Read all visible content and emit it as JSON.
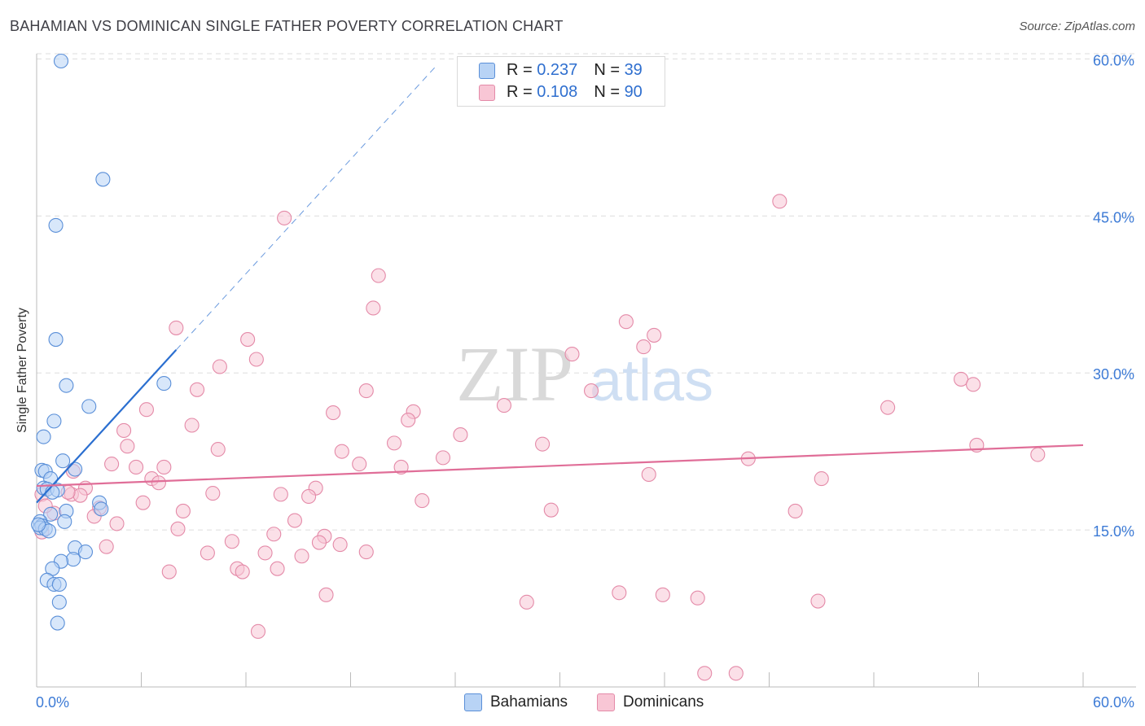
{
  "title": "BAHAMIAN VS DOMINICAN SINGLE FATHER POVERTY CORRELATION CHART",
  "source": "Source: ZipAtlas.com",
  "watermark": {
    "zip": "ZIP",
    "atlas": "atlas"
  },
  "colors": {
    "bahamians_fill": "#b8d3f5",
    "bahamians_stroke": "#5a8fd8",
    "bahamians_line": "#2b6fd0",
    "dominicans_fill": "#f8c6d5",
    "dominicans_stroke": "#e48aa8",
    "dominicans_line": "#e06e98",
    "axis_text": "#3d7bd6",
    "grid": "#dddddd"
  },
  "legend": {
    "rows": [
      {
        "r_label": "R =",
        "r_value": "0.237",
        "n_label": "N =",
        "n_value": "39"
      },
      {
        "r_label": "R =",
        "r_value": "0.108",
        "n_label": "N =",
        "n_value": "90"
      }
    ]
  },
  "bottom_legend": {
    "bahamians": "Bahamians",
    "dominicans": "Dominicans"
  },
  "chart_data": {
    "type": "scatter",
    "title": "BAHAMIAN VS DOMINICAN SINGLE FATHER POVERTY CORRELATION CHART",
    "xlabel": "",
    "ylabel": "Single Father Poverty",
    "xlim": [
      0,
      60
    ],
    "ylim": [
      0,
      60.5
    ],
    "x_tick_labels": [
      "0.0%",
      "60.0%"
    ],
    "y_ticks": [
      15,
      30,
      45,
      60
    ],
    "y_tick_labels": [
      "15.0%",
      "30.0%",
      "45.0%",
      "60.0%"
    ],
    "series": [
      {
        "name": "Bahamians",
        "r": 0.237,
        "n": 39,
        "trend": {
          "x0": 0.0,
          "y0": 17.6,
          "x1": 8.0,
          "y1": 32.2,
          "dash_to_x": 23.0,
          "dash_to_y": 59.5
        },
        "points": [
          [
            1.4,
            59.8
          ],
          [
            3.8,
            48.5
          ],
          [
            1.1,
            44.1
          ],
          [
            1.1,
            33.2
          ],
          [
            1.7,
            28.8
          ],
          [
            7.3,
            29.0
          ],
          [
            3.0,
            26.8
          ],
          [
            1.0,
            25.4
          ],
          [
            0.4,
            23.9
          ],
          [
            1.5,
            21.6
          ],
          [
            0.3,
            20.7
          ],
          [
            0.5,
            20.6
          ],
          [
            2.2,
            20.8
          ],
          [
            0.8,
            19.9
          ],
          [
            0.4,
            19.0
          ],
          [
            0.6,
            18.9
          ],
          [
            1.2,
            18.8
          ],
          [
            0.9,
            18.6
          ],
          [
            1.7,
            16.8
          ],
          [
            3.6,
            17.6
          ],
          [
            3.7,
            17.0
          ],
          [
            0.8,
            16.5
          ],
          [
            0.2,
            15.8
          ],
          [
            0.3,
            15.4
          ],
          [
            0.2,
            15.2
          ],
          [
            0.5,
            15.1
          ],
          [
            0.7,
            14.9
          ],
          [
            1.6,
            15.8
          ],
          [
            2.2,
            13.3
          ],
          [
            2.8,
            12.9
          ],
          [
            2.1,
            12.2
          ],
          [
            1.4,
            12.0
          ],
          [
            0.9,
            11.3
          ],
          [
            0.6,
            10.2
          ],
          [
            1.0,
            9.8
          ],
          [
            1.3,
            9.8
          ],
          [
            1.3,
            8.1
          ],
          [
            1.2,
            6.1
          ],
          [
            0.1,
            15.5
          ]
        ]
      },
      {
        "name": "Dominicans",
        "r": 0.108,
        "n": 90,
        "trend": {
          "x0": 0.0,
          "y0": 19.2,
          "x1": 60.0,
          "y1": 23.1
        },
        "points": [
          [
            14.2,
            44.8
          ],
          [
            42.6,
            46.4
          ],
          [
            19.6,
            39.3
          ],
          [
            19.3,
            36.2
          ],
          [
            8.0,
            34.3
          ],
          [
            12.1,
            33.2
          ],
          [
            33.8,
            34.9
          ],
          [
            35.4,
            33.6
          ],
          [
            34.8,
            32.5
          ],
          [
            12.6,
            31.3
          ],
          [
            30.7,
            31.8
          ],
          [
            10.5,
            30.6
          ],
          [
            18.9,
            28.3
          ],
          [
            9.2,
            28.4
          ],
          [
            31.8,
            28.3
          ],
          [
            53.0,
            29.4
          ],
          [
            53.7,
            28.9
          ],
          [
            26.8,
            26.9
          ],
          [
            48.8,
            26.7
          ],
          [
            6.3,
            26.5
          ],
          [
            17.0,
            26.2
          ],
          [
            21.6,
            26.3
          ],
          [
            21.3,
            25.5
          ],
          [
            5.0,
            24.5
          ],
          [
            8.9,
            25.0
          ],
          [
            24.3,
            24.1
          ],
          [
            20.5,
            23.3
          ],
          [
            29.0,
            23.2
          ],
          [
            53.9,
            23.1
          ],
          [
            5.2,
            23.0
          ],
          [
            10.4,
            22.7
          ],
          [
            17.5,
            22.5
          ],
          [
            23.3,
            21.9
          ],
          [
            40.8,
            21.8
          ],
          [
            57.4,
            22.2
          ],
          [
            4.3,
            21.3
          ],
          [
            18.5,
            21.3
          ],
          [
            5.7,
            21.0
          ],
          [
            7.3,
            21.0
          ],
          [
            20.9,
            21.0
          ],
          [
            2.1,
            20.6
          ],
          [
            35.1,
            20.3
          ],
          [
            45.0,
            19.9
          ],
          [
            6.6,
            19.9
          ],
          [
            7.0,
            19.5
          ],
          [
            2.8,
            19.0
          ],
          [
            16.0,
            19.0
          ],
          [
            10.1,
            18.5
          ],
          [
            14.0,
            18.4
          ],
          [
            15.6,
            18.2
          ],
          [
            2.0,
            18.4
          ],
          [
            2.5,
            18.3
          ],
          [
            0.3,
            18.4
          ],
          [
            1.8,
            18.6
          ],
          [
            6.1,
            17.6
          ],
          [
            3.6,
            17.1
          ],
          [
            8.4,
            16.8
          ],
          [
            29.5,
            16.9
          ],
          [
            43.5,
            16.8
          ],
          [
            1.0,
            16.6
          ],
          [
            3.3,
            16.3
          ],
          [
            4.6,
            15.6
          ],
          [
            14.8,
            15.9
          ],
          [
            8.1,
            15.1
          ],
          [
            13.6,
            14.6
          ],
          [
            16.5,
            14.4
          ],
          [
            0.3,
            14.8
          ],
          [
            11.2,
            13.9
          ],
          [
            16.2,
            13.8
          ],
          [
            17.4,
            13.6
          ],
          [
            4.0,
            13.4
          ],
          [
            9.8,
            12.8
          ],
          [
            13.1,
            12.8
          ],
          [
            18.9,
            12.9
          ],
          [
            15.2,
            12.5
          ],
          [
            11.5,
            11.3
          ],
          [
            11.8,
            11.0
          ],
          [
            13.8,
            11.3
          ],
          [
            7.6,
            11.0
          ],
          [
            16.6,
            8.8
          ],
          [
            33.4,
            9.0
          ],
          [
            35.9,
            8.8
          ],
          [
            37.9,
            8.5
          ],
          [
            28.1,
            8.1
          ],
          [
            44.8,
            8.2
          ],
          [
            12.7,
            5.3
          ],
          [
            38.3,
            1.3
          ],
          [
            40.1,
            1.3
          ],
          [
            0.5,
            17.3
          ],
          [
            22.1,
            17.8
          ]
        ]
      }
    ]
  }
}
